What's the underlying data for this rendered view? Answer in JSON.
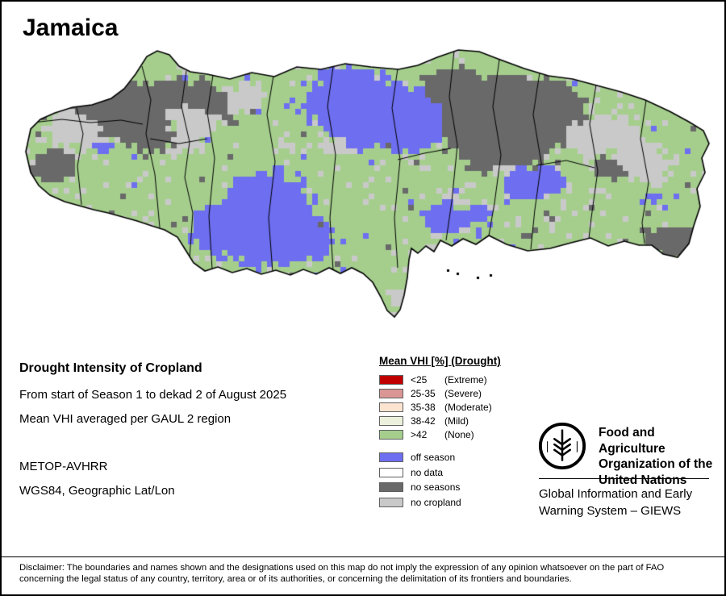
{
  "title": "Jamaica",
  "info": {
    "heading": "Drought Intensity of Cropland",
    "period": "From start of Season 1 to dekad 2 of August 2025",
    "aggregation": "Mean VHI averaged per GAUL 2 region",
    "sensor": "METOP-AVHRR",
    "projection": "WGS84, Geographic Lat/Lon"
  },
  "legend": {
    "title": "Mean VHI [%] (Drought)",
    "drought_classes": [
      {
        "label": "<25",
        "qualifier": "(Extreme)",
        "color": "#c00000"
      },
      {
        "label": "25-35",
        "qualifier": "(Severe)",
        "color": "#da9694"
      },
      {
        "label": "35-38",
        "qualifier": "(Moderate)",
        "color": "#fce4d0"
      },
      {
        "label": "38-42",
        "qualifier": "(Mild)",
        "color": "#ebf1dd"
      },
      {
        "label": ">42",
        "qualifier": "(None)",
        "color": "#a5ce8d"
      }
    ],
    "other_classes": [
      {
        "label": "off season",
        "color": "#6e6ef0"
      },
      {
        "label": "no data",
        "color": "#ffffff"
      },
      {
        "label": "no seasons",
        "color": "#696969"
      },
      {
        "label": "no cropland",
        "color": "#c9c9c9"
      }
    ]
  },
  "branding": {
    "org_lines": [
      "Food and Agriculture",
      "Organization of the",
      "United Nations"
    ],
    "giews_lines": [
      "Global Information and Early",
      "Warning System – GIEWS"
    ]
  },
  "disclaimer": {
    "line1": "Disclaimer: The boundaries and names shown and the designations used on this map do not imply the expression of any opinion whatsoever on the part of FAO",
    "line2": "concerning the legal status of any country, territory, area or of its authorities, or concerning the delimitation of its frontiers and boundaries."
  }
}
